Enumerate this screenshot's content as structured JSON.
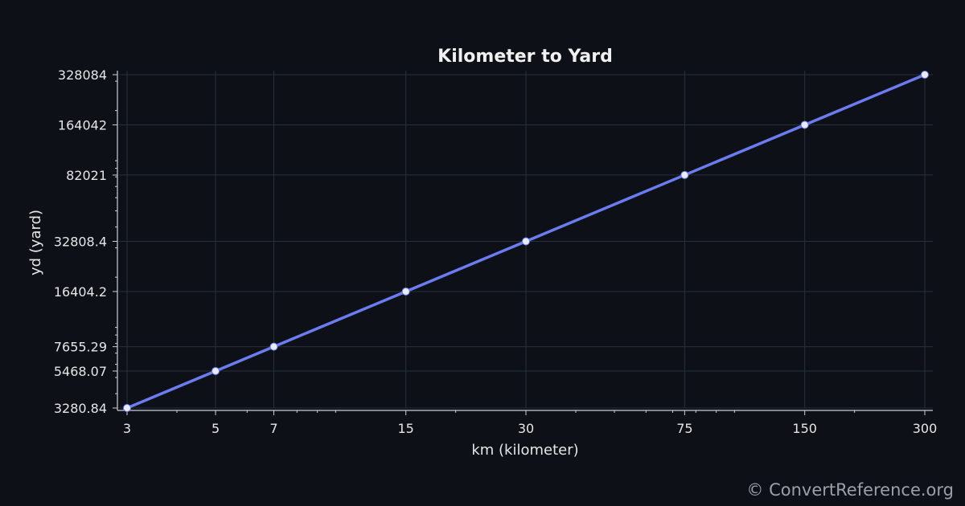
{
  "chart_data": {
    "type": "line",
    "title": "Kilometer to Yard",
    "xlabel": "km (kilometer)",
    "ylabel": "yd (yard)",
    "x_scale": "log",
    "y_scale": "log",
    "x": [
      3,
      5,
      7,
      15,
      30,
      75,
      150,
      300
    ],
    "series": [
      {
        "values": [
          3280.84,
          5468.07,
          7655.29,
          16404.2,
          32808.4,
          82021,
          164042,
          328084
        ]
      }
    ],
    "x_ticks": [
      "3",
      "5",
      "7",
      "15",
      "30",
      "75",
      "150",
      "300"
    ],
    "y_ticks": [
      "3280.84",
      "5468.07",
      "7655.29",
      "16404.2",
      "32808.4",
      "82021",
      "164042",
      "328084"
    ],
    "xlim": [
      3,
      300
    ],
    "ylim": [
      3280.84,
      328084
    ],
    "grid": true,
    "colors": {
      "background": "#0d1017",
      "line": "#6b7cf0",
      "marker": "#e8ecf4",
      "grid": "#27313a",
      "axis": "#c9ced6",
      "text": "#e6e6e6"
    }
  },
  "watermark": "© ConvertReference.org"
}
